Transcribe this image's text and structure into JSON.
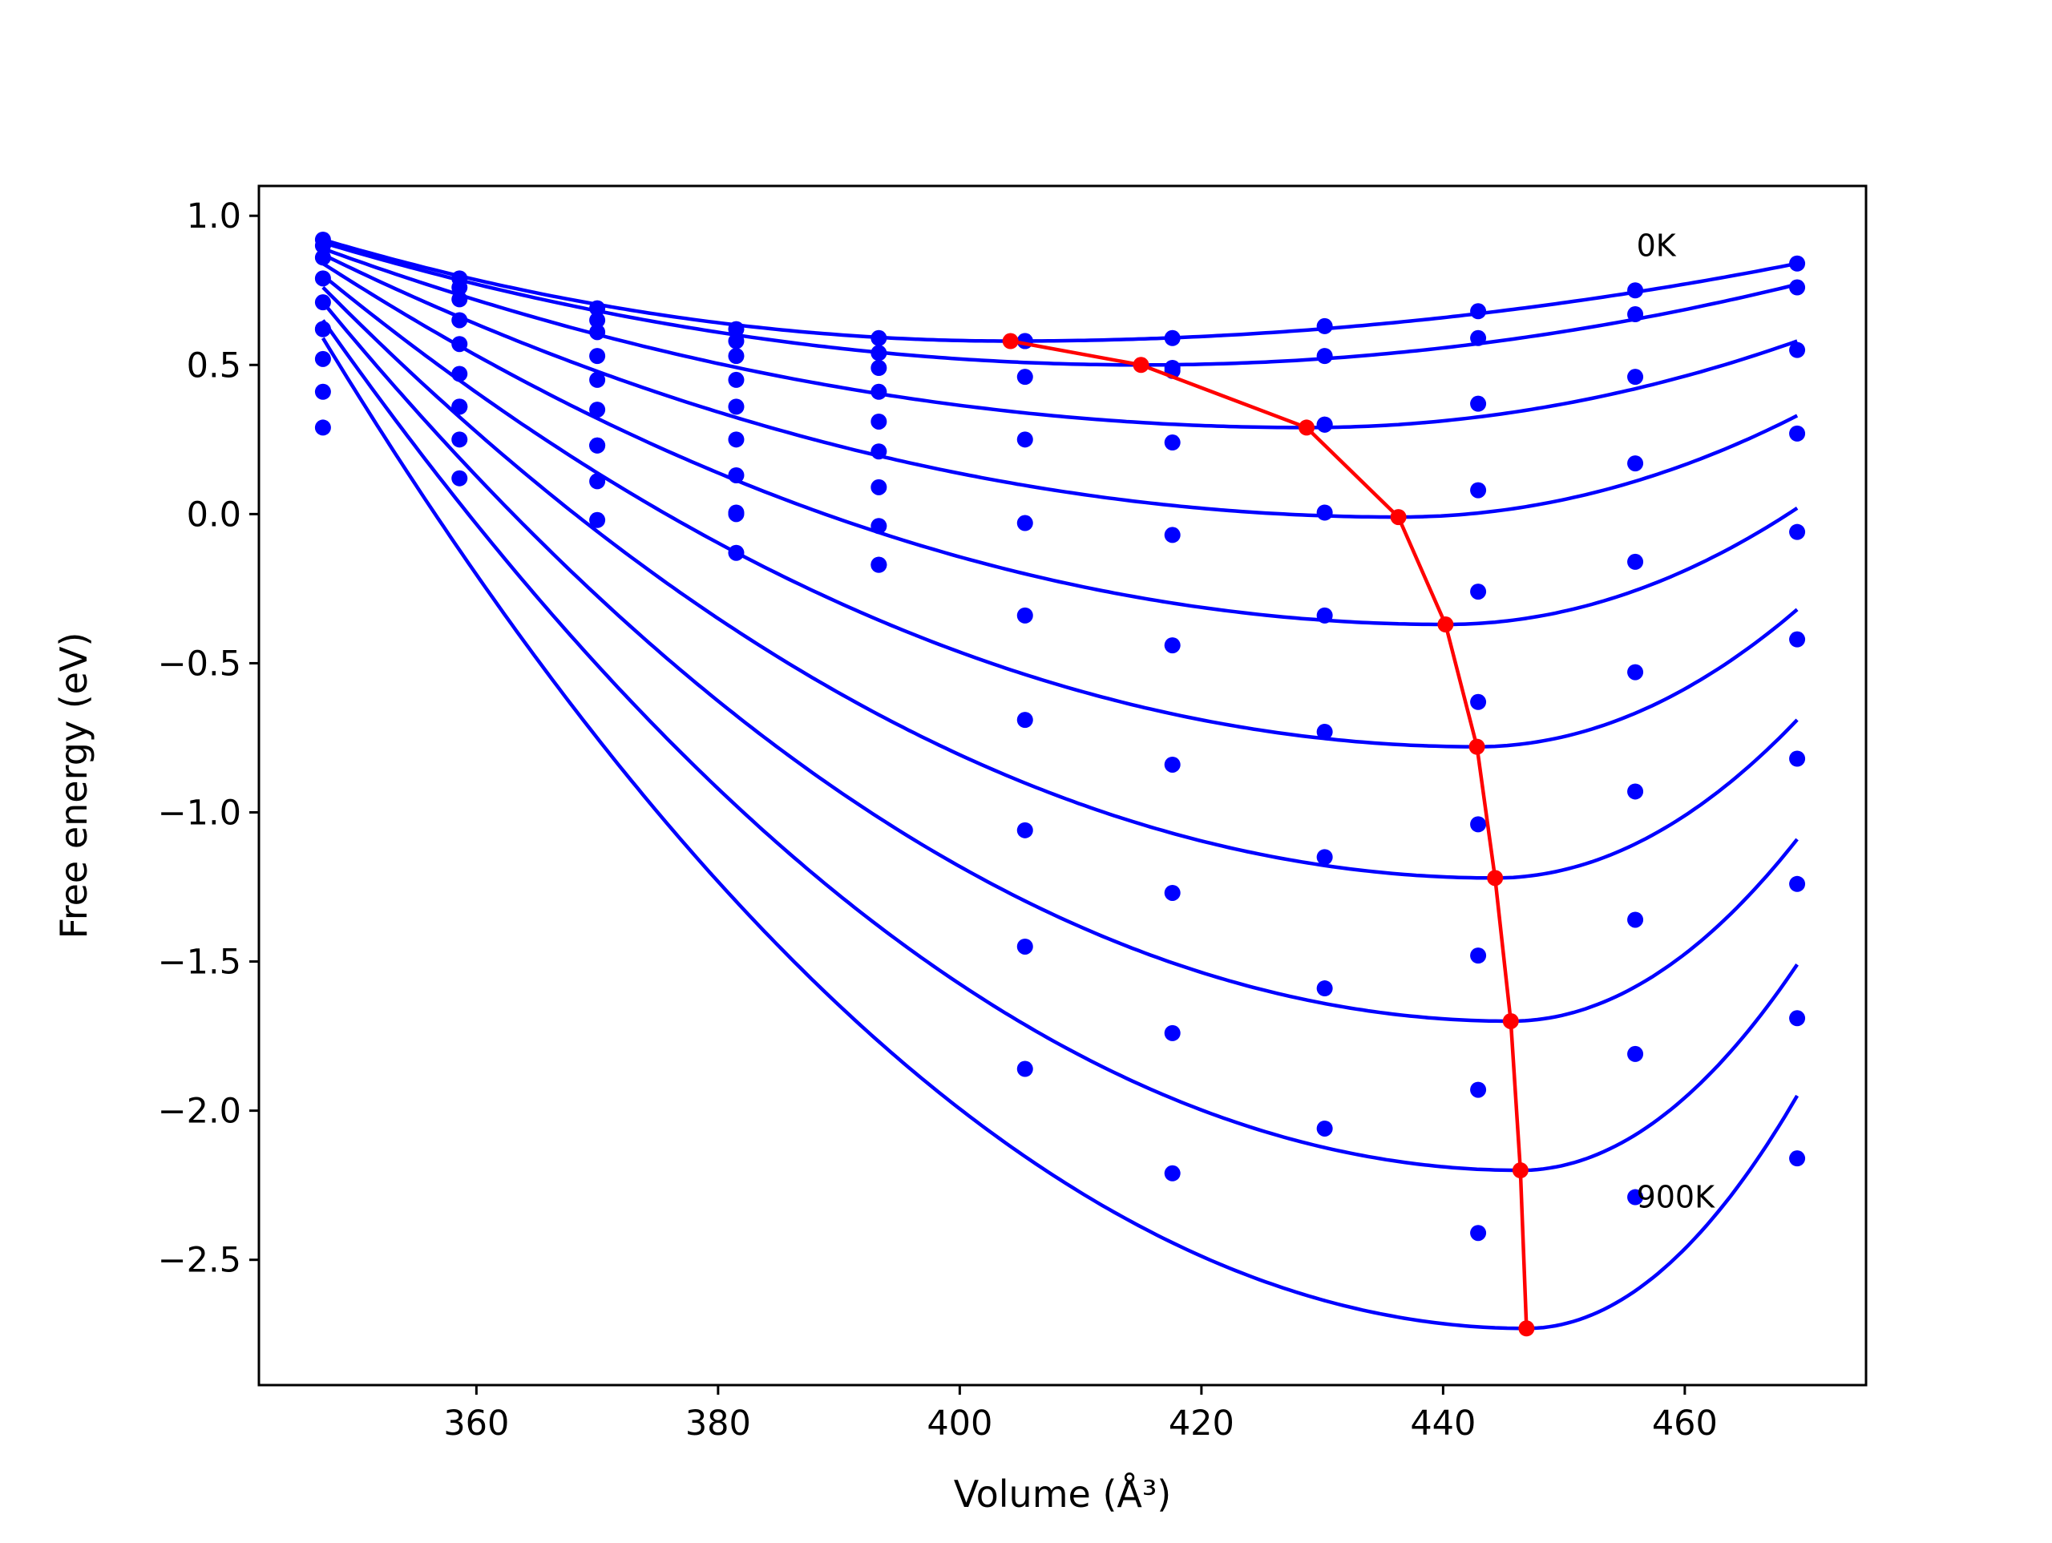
{
  "chart_data": {
    "type": "scatter",
    "title": "",
    "xlabel": "Volume (Å³)",
    "ylabel": "Free energy (eV)",
    "xlim": [
      342,
      475
    ],
    "ylim": [
      -2.92,
      1.1
    ],
    "x_ticks": [
      360,
      380,
      400,
      420,
      440,
      460
    ],
    "y_ticks": [
      1.0,
      0.5,
      0.0,
      -0.5,
      -1.0,
      -1.5,
      -2.0,
      -2.5
    ],
    "x_tick_labels": [
      "360",
      "380",
      "400",
      "420",
      "440",
      "460"
    ],
    "y_tick_labels": [
      "1.0",
      "0.5",
      "0.0",
      "−0.5",
      "−1.0",
      "−1.5",
      "−2.0",
      "−2.5"
    ],
    "annotations": [
      {
        "text": "0K",
        "x": 456,
        "y": 0.9
      },
      {
        "text": "900K",
        "x": 456,
        "y": -2.29
      }
    ],
    "volumes": [
      347.3,
      358.6,
      370.0,
      381.5,
      393.3,
      405.4,
      417.6,
      430.2,
      442.9,
      455.9,
      469.3
    ],
    "series": [
      {
        "label": "0K",
        "points": [
          0.92,
          0.79,
          0.69,
          0.62,
          0.59,
          0.58,
          0.59,
          0.63,
          0.68,
          0.75,
          0.84
        ],
        "minimum": [
          404.2,
          0.58
        ]
      },
      {
        "points": [
          0.9,
          0.76,
          0.65,
          0.58,
          0.54,
          0.58,
          0.48,
          0.53,
          0.59,
          0.67,
          0.76
        ],
        "minimum": [
          415.0,
          0.5
        ]
      },
      {
        "points": [
          0.86,
          0.72,
          0.61,
          0.53,
          0.49,
          0.46,
          0.49,
          0.3,
          0.37,
          0.46,
          0.55
        ],
        "minimum": [
          428.7,
          0.29
        ]
      },
      {
        "points": [
          0.79,
          0.65,
          0.53,
          0.45,
          0.41,
          0.25,
          0.24,
          0.3,
          0.08,
          0.17,
          0.27
        ],
        "minimum": [
          436.3,
          -0.01
        ]
      },
      {
        "points": [
          0.71,
          0.57,
          0.45,
          0.36,
          0.31,
          -0.03,
          -0.07,
          0.005,
          -0.26,
          -0.16,
          -0.06
        ],
        "minimum": [
          440.2,
          -0.37
        ]
      },
      {
        "points": [
          0.62,
          0.47,
          0.35,
          0.25,
          0.21,
          -0.34,
          -0.44,
          -0.34,
          -0.63,
          -0.53,
          -0.42
        ],
        "minimum": [
          442.8,
          -0.78
        ]
      },
      {
        "points": [
          0.52,
          0.36,
          0.23,
          0.13,
          0.09,
          -0.69,
          -0.84,
          -0.73,
          -1.04,
          -0.93,
          -0.82
        ],
        "minimum": [
          444.3,
          -1.22
        ]
      },
      {
        "points": [
          0.41,
          0.25,
          0.11,
          0.005,
          -0.04,
          -1.06,
          -1.27,
          -1.15,
          -1.48,
          -1.36,
          -1.24
        ],
        "minimum": [
          445.6,
          -1.7
        ]
      },
      {
        "points": [
          0.29,
          0.12,
          -0.02,
          -0.13,
          -0.17,
          -1.45,
          -1.74,
          -1.59,
          -1.93,
          -1.81,
          -1.69
        ],
        "minimum": [
          446.4,
          -2.2
        ]
      },
      {
        "label": "900K",
        "points": [
          0.62,
          0.36,
          0.23,
          0.0,
          -0.17,
          -1.86,
          -2.21,
          -2.06,
          -2.41,
          -2.29,
          -2.16
        ],
        "minimum": [
          446.9,
          -2.73
        ]
      }
    ],
    "fit_curves": [
      {
        "v0": 404.2,
        "e0": 0.58,
        "vs": 347.3,
        "es": 0.92
      },
      {
        "v0": 415.0,
        "e0": 0.5,
        "vs": 347.3,
        "es": 0.91
      },
      {
        "v0": 428.7,
        "e0": 0.29,
        "vs": 347.3,
        "es": 0.89
      },
      {
        "v0": 436.3,
        "e0": -0.01,
        "vs": 347.3,
        "es": 0.87
      },
      {
        "v0": 440.2,
        "e0": -0.37,
        "vs": 347.3,
        "es": 0.84
      },
      {
        "v0": 442.8,
        "e0": -0.78,
        "vs": 347.3,
        "es": 0.8
      },
      {
        "v0": 444.3,
        "e0": -1.22,
        "vs": 347.3,
        "es": 0.76
      },
      {
        "v0": 445.6,
        "e0": -1.7,
        "vs": 347.3,
        "es": 0.71
      },
      {
        "v0": 446.4,
        "e0": -2.2,
        "vs": 347.3,
        "es": 0.65
      },
      {
        "v0": 446.9,
        "e0": -2.73,
        "vs": 347.3,
        "es": 0.59
      }
    ],
    "fit_end": {
      "x": 469.3,
      "y": [
        0.84,
        0.77,
        0.58,
        0.33,
        0.02,
        -0.32,
        -0.69,
        -1.09,
        -1.51,
        -1.95
      ]
    },
    "minimum_path_color": "#ff0000",
    "series_color": "#0000ff",
    "grid": false,
    "legend": "none"
  }
}
